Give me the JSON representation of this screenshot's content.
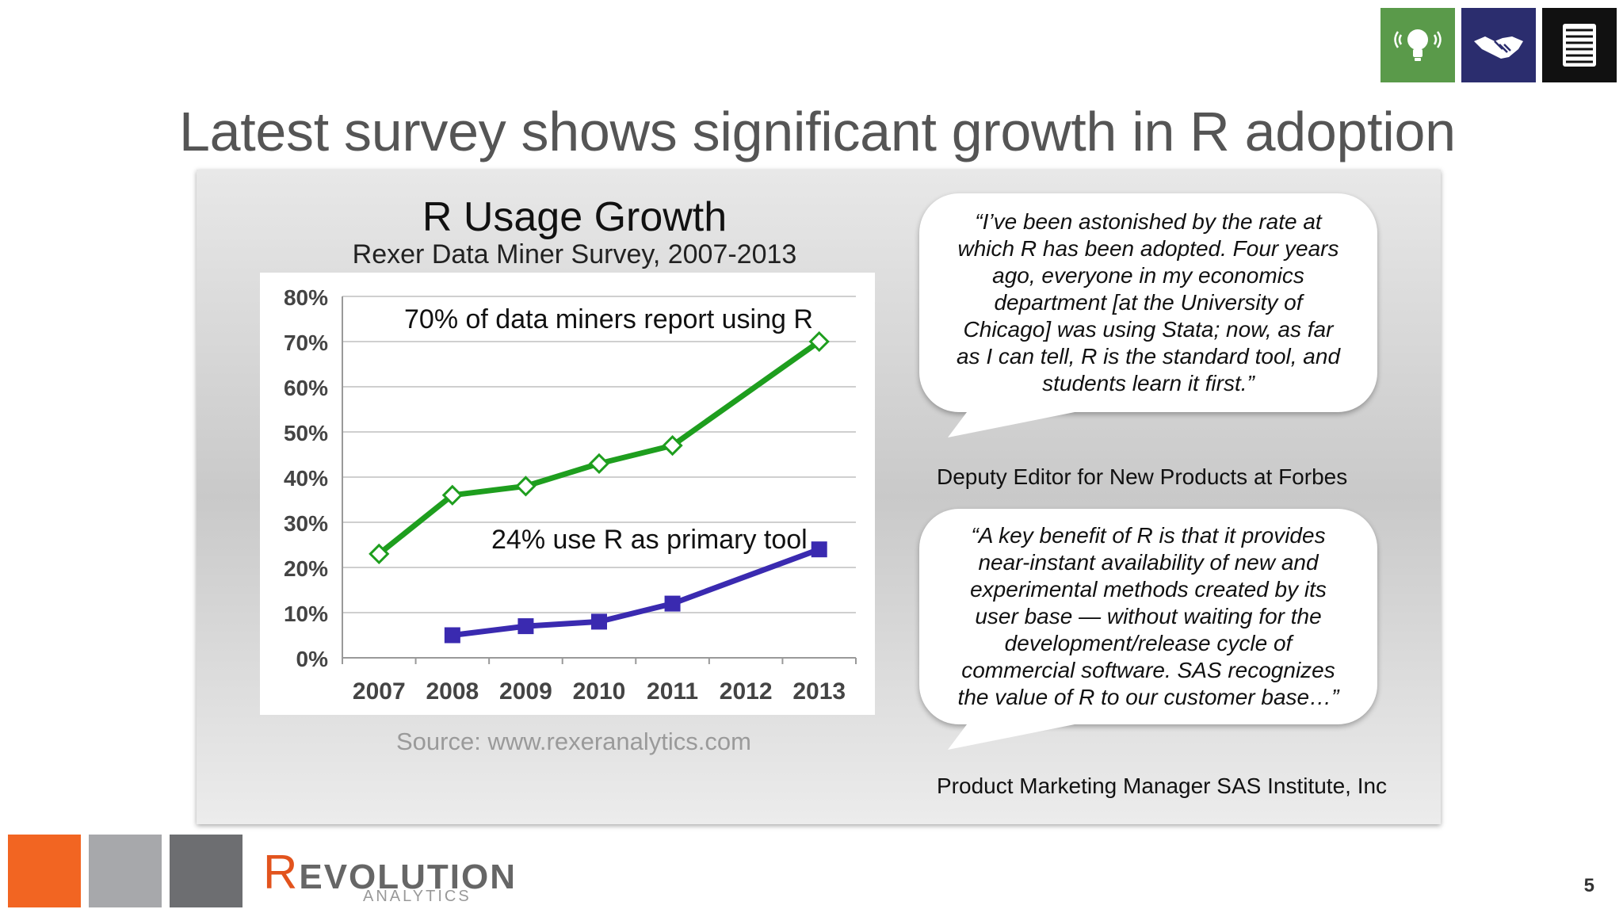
{
  "slide": {
    "title": "Latest survey shows significant growth in R adoption",
    "page_number": "5",
    "source": "Source: www.rexeranalytics.com"
  },
  "top_icons": [
    {
      "name": "lightbulb-icon",
      "color": "#5a9a4a"
    },
    {
      "name": "handshake-icon",
      "color": "#2b2d6e"
    },
    {
      "name": "document-icon",
      "color": "#111111"
    }
  ],
  "chart_data": {
    "type": "line",
    "title": "R Usage Growth",
    "subtitle": "Rexer Data Miner Survey, 2007-2013",
    "x": [
      "2007",
      "2008",
      "2009",
      "2010",
      "2011",
      "2012",
      "2013"
    ],
    "ylim": [
      0,
      80
    ],
    "yticks": [
      "0%",
      "10%",
      "20%",
      "30%",
      "40%",
      "50%",
      "60%",
      "70%",
      "80%"
    ],
    "grid": true,
    "series": [
      {
        "values": [
          23,
          36,
          38,
          43,
          47,
          null,
          70
        ],
        "color": "#1e9e1e",
        "marker": "diamond"
      },
      {
        "values": [
          null,
          5,
          7,
          8,
          12,
          null,
          24
        ],
        "color": "#3a2ab0",
        "marker": "square"
      }
    ],
    "annotations": [
      "70% of data miners report using R",
      "24% use R as primary tool"
    ]
  },
  "quotes": [
    {
      "text": "“I’ve been astonished by the rate at which R has been adopted. Four years ago, everyone in my economics department [at the University of Chicago] was using Stata; now, as far as I can tell, R is the standard tool, and students learn it first.”",
      "attribution": "Deputy Editor for New Products at Forbes"
    },
    {
      "text": "“A key benefit of R is that it provides near-instant availability of new and experimental methods created by its user base — without waiting for the development/release cycle of commercial software. SAS recognizes the value of R to our customer base…”",
      "attribution": "Product Marketing Manager SAS Institute, Inc"
    }
  ],
  "footer": {
    "square_colors": [
      "#f26522",
      "#a7a8ab",
      "#6d6e71"
    ],
    "logo_r": "R",
    "logo_main": "EVOLUTION",
    "logo_sub": "ANALYTICS"
  }
}
